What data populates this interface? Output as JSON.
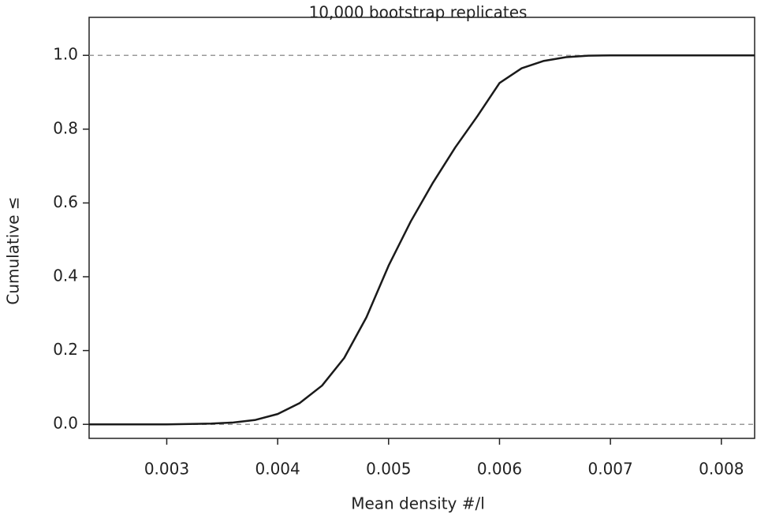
{
  "chart_data": {
    "type": "line",
    "title": "10,000 bootstrap replicates",
    "x_label": "Mean density #/l",
    "y_label": "Cumulative ≤",
    "x": [
      0.0023,
      0.003,
      0.0034,
      0.0036,
      0.0038,
      0.004,
      0.0042,
      0.0044,
      0.0046,
      0.0048,
      0.005,
      0.0052,
      0.0054,
      0.0056,
      0.0058,
      0.006,
      0.0062,
      0.0064,
      0.0066,
      0.0068,
      0.007,
      0.0083
    ],
    "series": [
      {
        "color": "#1a1a1a",
        "values": [
          0,
          0,
          0.002,
          0.005,
          0.012,
          0.028,
          0.058,
          0.105,
          0.18,
          0.29,
          0.43,
          0.55,
          0.655,
          0.75,
          0.835,
          0.925,
          0.965,
          0.985,
          0.995,
          0.999,
          1,
          1
        ]
      }
    ],
    "xlim": [
      0.0023,
      0.0083
    ],
    "ylim": [
      -0.038,
      1.103
    ],
    "xticks": [
      0.003,
      0.004,
      0.005,
      0.006,
      0.007,
      0.008
    ],
    "yticks": [
      {
        "value": 0,
        "label": "0.0"
      },
      0.2,
      0.4,
      0.6,
      0.8,
      {
        "value": 1,
        "label": "1.0"
      }
    ],
    "hlines": [
      0,
      1
    ],
    "hline_color": "#999999",
    "grid": false
  }
}
